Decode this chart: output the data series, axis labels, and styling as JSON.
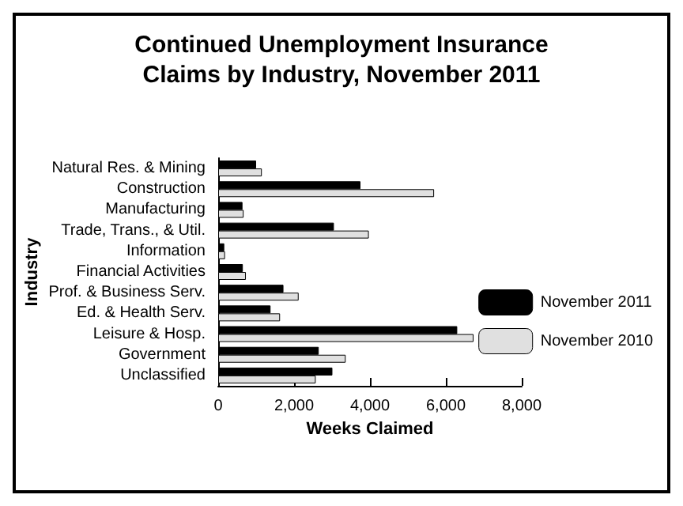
{
  "chart_data": {
    "type": "bar",
    "orientation": "horizontal",
    "title": "Continued Unemployment Insurance\nClaims by Industry, November 2011",
    "xlabel": "Weeks Claimed",
    "ylabel": "Industry",
    "categories": [
      "Natural Res. & Mining",
      "Construction",
      "Manufacturing",
      "Trade, Trans., & Util.",
      "Information",
      "Financial Activities",
      "Prof. & Business Serv.",
      "Ed. & Health Serv.",
      "Leisure & Hosp.",
      "Government",
      "Unclassified"
    ],
    "series": [
      {
        "name": "November 2011",
        "color": "#000000",
        "values": [
          1000,
          3750,
          640,
          3050,
          160,
          650,
          1720,
          1380,
          6300,
          2650,
          3010
        ]
      },
      {
        "name": "November 2010",
        "color": "#e0e0e0",
        "values": [
          1150,
          5690,
          670,
          3970,
          180,
          730,
          2120,
          1630,
          6730,
          3360,
          2570
        ]
      }
    ],
    "xlim": [
      0,
      8000
    ],
    "xticks": [
      0,
      {
        "value": 2000,
        "label": "2,000"
      },
      {
        "value": 4000,
        "label": "4,000"
      },
      {
        "value": 6000,
        "label": "6,000"
      },
      {
        "value": 8000,
        "label": "8,000"
      }
    ],
    "grid": false,
    "legend": "right"
  }
}
